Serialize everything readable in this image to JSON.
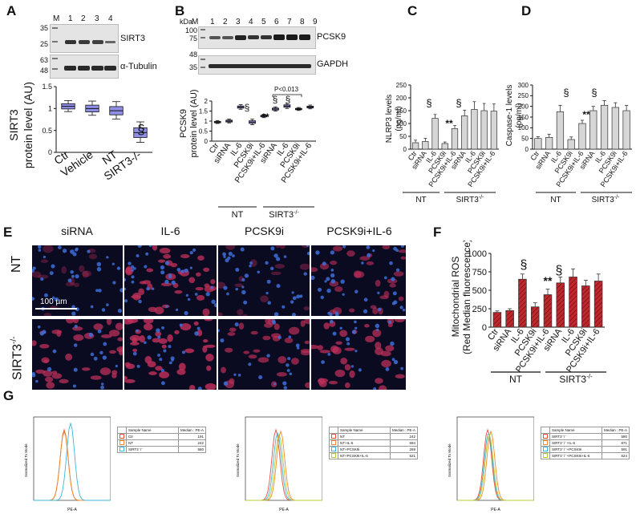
{
  "panel_letters": [
    "A",
    "B",
    "C",
    "D",
    "E",
    "F",
    "G"
  ],
  "panel_a": {
    "lane_marker": "M",
    "lanes": [
      "1",
      "2",
      "3",
      "4"
    ],
    "kda_top": [
      "35",
      "25"
    ],
    "kda_bottom": [
      "63",
      "48"
    ],
    "label_top": "SIRT3",
    "label_bottom": "α-Tubulin",
    "ylabel_line1": "SIRT3",
    "ylabel_line2": "protein level (AU)",
    "sig_mark": "§"
  },
  "panel_b": {
    "kda_unit": "kDa",
    "lane_marker": "M",
    "lanes": [
      "1",
      "2",
      "3",
      "4",
      "5",
      "6",
      "7",
      "8",
      "9"
    ],
    "kda_top": [
      "100",
      "75"
    ],
    "kda_bottom": [
      "48",
      "35"
    ],
    "label_top": "PCSK9",
    "label_bottom": "GAPDH",
    "ylabel_line1": "PCSK9",
    "ylabel_line2": "protein level (AU)",
    "p_value": "P<0.013",
    "sig_section": "§",
    "sig_stars": "**",
    "group_nt": "NT",
    "group_sirt3": "SIRT3",
    "group_sirt3_sup": "-/-"
  },
  "panel_c": {
    "ylabel_line1": "NLRP3 levels",
    "ylabel_line2": "(pg/ml)",
    "sig_section": "§",
    "sig_stars": "**",
    "group_nt": "NT",
    "group_sirt3": "SIRT3",
    "group_sirt3_sup": "-/-"
  },
  "panel_d": {
    "ylabel_line1": "Caspase-1 levels",
    "ylabel_line2": "(pg/ml)",
    "sig_section": "§",
    "sig_stars": "**",
    "group_nt": "NT",
    "group_sirt3": "SIRT3",
    "group_sirt3_sup": "-/-"
  },
  "panel_e": {
    "columns": [
      "siRNA",
      "IL-6",
      "PCSK9i",
      "PCSK9i+IL-6"
    ],
    "row_nt": "NT",
    "row_sirt3": "SIRT3",
    "row_sirt3_sup": "-/-",
    "scale_bar": "100 µm"
  },
  "panel_f": {
    "ylabel_line1": "Mitochondrial ROS",
    "ylabel_line2": "(Red Median fluorescence)",
    "sig_section": "§",
    "sig_stars": "**",
    "group_nt": "NT",
    "group_sirt3": "SIRT3",
    "group_sirt3_sup": "-/-"
  },
  "panel_g": {
    "y_axis_label": "Normalized To Mode",
    "x_axis_label": "PE-A",
    "table_header": [
      "Sample Name",
      "Median : PE-A"
    ],
    "plots": [
      {
        "rows": [
          [
            "Ctr",
            "191"
          ],
          [
            "NT",
            "242"
          ],
          [
            "SIRT3⁻/⁻",
            "580"
          ]
        ],
        "colors": [
          "#e5533d",
          "#f08a24",
          "#3fb7d9"
        ]
      },
      {
        "rows": [
          [
            "NT",
            "242"
          ],
          [
            "NT+IL-6",
            "694"
          ],
          [
            "NT+PCSK9i",
            "269"
          ],
          [
            "NT+PCSK9i+IL-6",
            "521"
          ]
        ],
        "colors": [
          "#e5533d",
          "#f08a24",
          "#3fb7d9",
          "#b5c93a"
        ]
      },
      {
        "rows": [
          [
            "SIRT3⁻/⁻",
            "580"
          ],
          [
            "SIRT3⁻/⁻+IL-6",
            "871"
          ],
          [
            "SIRT3⁻/⁻+PCSK9i",
            "591"
          ],
          [
            "SIRT3⁻/⁻+PCSK9i+IL-6",
            "624"
          ]
        ],
        "colors": [
          "#e5533d",
          "#f08a24",
          "#3fb7d9",
          "#b5c93a"
        ]
      }
    ]
  },
  "colors": {
    "box_fill": "#8f8fe8",
    "bar_gray": "#d6d6d6",
    "bar_red": "#c0282d",
    "nucleus_blue": "#3d6fd8",
    "cyto_red": "#c0305a"
  },
  "chart_data": [
    {
      "id": "A-box",
      "type": "box",
      "categories": [
        "Ctr",
        "Vehicle",
        "NT",
        "SIRT3-/-"
      ],
      "values": [
        1.05,
        1.0,
        0.95,
        0.45
      ],
      "ylabel": "SIRT3 protein level (AU)",
      "ylim": [
        0,
        1.5
      ],
      "yticks": [
        0,
        0.5,
        1.0,
        1.5
      ]
    },
    {
      "id": "B-box",
      "type": "box",
      "categories": [
        "Ctr",
        "siRNA",
        "IL-6",
        "PCSK9i",
        "PCSK9i+IL-6",
        "siRNA",
        "IL-6",
        "PCSK9i",
        "PCSK9i+IL-6"
      ],
      "values": [
        0.95,
        1.0,
        1.7,
        0.95,
        1.25,
        1.6,
        1.75,
        1.6,
        1.7
      ],
      "ylabel": "PCSK9 protein level (AU)",
      "ylim": [
        0,
        2.0
      ],
      "yticks": [
        0,
        0.5,
        1.0,
        1.5,
        2.0
      ]
    },
    {
      "id": "C-bar",
      "type": "bar",
      "categories": [
        "Ctr",
        "siRNA",
        "IL-6",
        "PCSK9i",
        "PCSK9i+IL-6",
        "siRNA",
        "IL-6",
        "PCSK9i",
        "PCSK9i+IL-6"
      ],
      "values": [
        25,
        30,
        120,
        22,
        80,
        130,
        155,
        150,
        148
      ],
      "errors": [
        10,
        12,
        15,
        6,
        12,
        22,
        30,
        28,
        28
      ],
      "ylabel": "NLRP3 levels (pg/ml)",
      "ylim": [
        0,
        250
      ],
      "yticks": [
        0,
        50,
        100,
        150,
        200,
        250
      ]
    },
    {
      "id": "D-bar",
      "type": "bar",
      "categories": [
        "Ctr",
        "siRNA",
        "IL-6",
        "PCSK9i",
        "PCSK9i+IL-6",
        "siRNA",
        "IL-6",
        "PCSK9i",
        "PCSK9i+IL-6"
      ],
      "values": [
        50,
        55,
        175,
        45,
        120,
        180,
        205,
        195,
        180
      ],
      "errors": [
        8,
        15,
        30,
        12,
        15,
        20,
        22,
        22,
        25
      ],
      "ylabel": "Caspase-1 levels (pg/ml)",
      "ylim": [
        0,
        300
      ],
      "yticks": [
        0,
        50,
        100,
        150,
        200,
        250,
        300
      ]
    },
    {
      "id": "F-bar",
      "type": "bar",
      "categories": [
        "Ctr",
        "siRNA",
        "IL-6",
        "PCSK9i",
        "PCSK9i+IL-6",
        "siRNA",
        "IL-6",
        "PCSK9i",
        "PCSK9i+IL-6"
      ],
      "values": [
        200,
        225,
        650,
        275,
        440,
        600,
        680,
        560,
        625
      ],
      "errors": [
        20,
        25,
        70,
        55,
        75,
        80,
        110,
        75,
        95
      ],
      "ylabel": "Mitochondrial ROS (Red Median fluorescence)",
      "ylim": [
        0,
        1000
      ],
      "yticks": [
        0,
        250,
        500,
        750,
        1000
      ]
    }
  ]
}
